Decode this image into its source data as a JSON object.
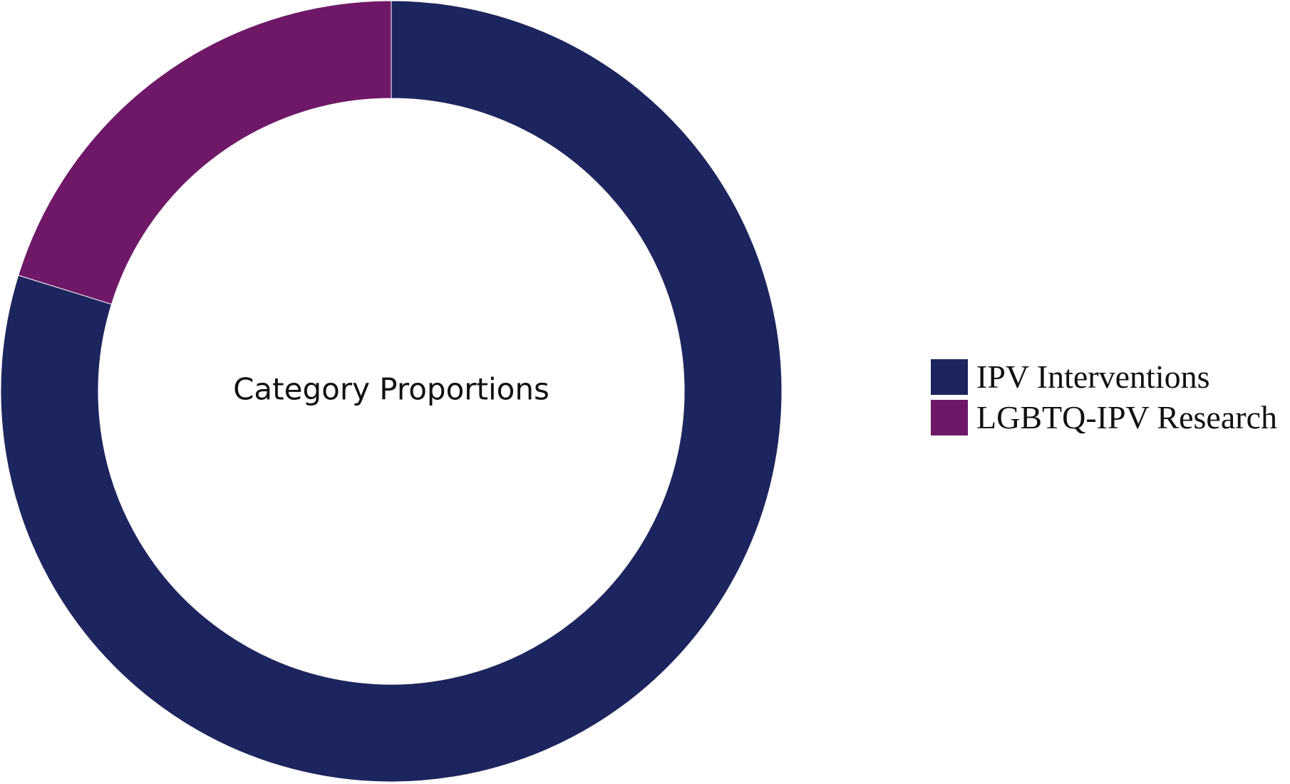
{
  "chart_data": {
    "type": "pie",
    "subtype": "donut",
    "title": "",
    "center_label": "Category Proportions",
    "categories": [
      "IPV Interventions",
      "LGBTQ-IPV Research"
    ],
    "values": [
      79.8,
      20.2
    ],
    "colors": [
      "#1c255e",
      "#6f1868"
    ],
    "start_angle_deg": 0,
    "direction": "clockwise",
    "legend_position": "right"
  }
}
